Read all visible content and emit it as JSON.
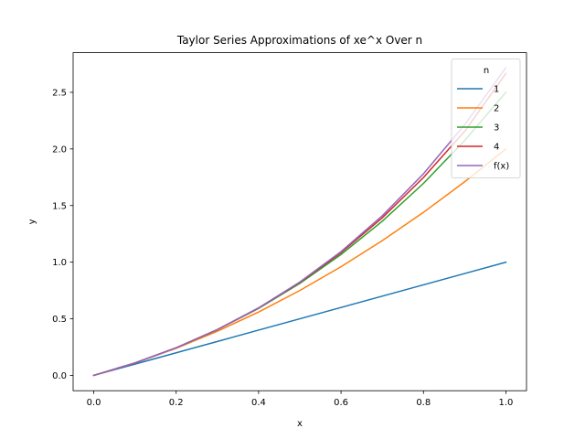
{
  "chart_data": {
    "type": "line",
    "title": "Taylor Series Approximations of xe^x Over n",
    "xlabel": "x",
    "ylabel": "y",
    "xlim": [
      -0.05,
      1.05
    ],
    "ylim": [
      -0.135,
      2.85
    ],
    "xticks": [
      0.0,
      0.2,
      0.4,
      0.6,
      0.8,
      1.0
    ],
    "xtick_labels": [
      "0.0",
      "0.2",
      "0.4",
      "0.6",
      "0.8",
      "1.0"
    ],
    "yticks": [
      0.0,
      0.5,
      1.0,
      1.5,
      2.0,
      2.5
    ],
    "ytick_labels": [
      "0.0",
      "0.5",
      "1.0",
      "1.5",
      "2.0",
      "2.5"
    ],
    "grid": false,
    "legend": {
      "title": "n",
      "placement": "top-right"
    },
    "x": [
      0.0,
      0.1,
      0.2,
      0.3,
      0.4,
      0.5,
      0.6,
      0.7,
      0.8,
      0.9,
      1.0
    ],
    "series": [
      {
        "name": "1",
        "color": "#1f77b4",
        "values": [
          0.0,
          0.1,
          0.2,
          0.3,
          0.4,
          0.5,
          0.6,
          0.7,
          0.8,
          0.9,
          1.0
        ]
      },
      {
        "name": "2",
        "color": "#ff7f0e",
        "values": [
          0.0,
          0.11,
          0.24,
          0.39,
          0.56,
          0.75,
          0.96,
          1.19,
          1.44,
          1.71,
          2.0
        ]
      },
      {
        "name": "3",
        "color": "#2ca02c",
        "values": [
          0.0,
          0.1105,
          0.244,
          0.4035,
          0.592,
          0.8125,
          1.068,
          1.3615,
          1.696,
          2.0745,
          2.5
        ]
      },
      {
        "name": "4",
        "color": "#d62728",
        "values": [
          0.0,
          0.1105,
          0.2441,
          0.4049,
          0.5952,
          0.8203,
          1.0843,
          1.3915,
          1.7472,
          2.1559,
          2.6667
        ]
      },
      {
        "name": "f(x)",
        "color": "#9467bd",
        "values": [
          0.0,
          0.1105,
          0.2443,
          0.405,
          0.5967,
          0.8244,
          1.0933,
          1.4096,
          1.7804,
          2.2136,
          2.7183
        ]
      }
    ]
  }
}
